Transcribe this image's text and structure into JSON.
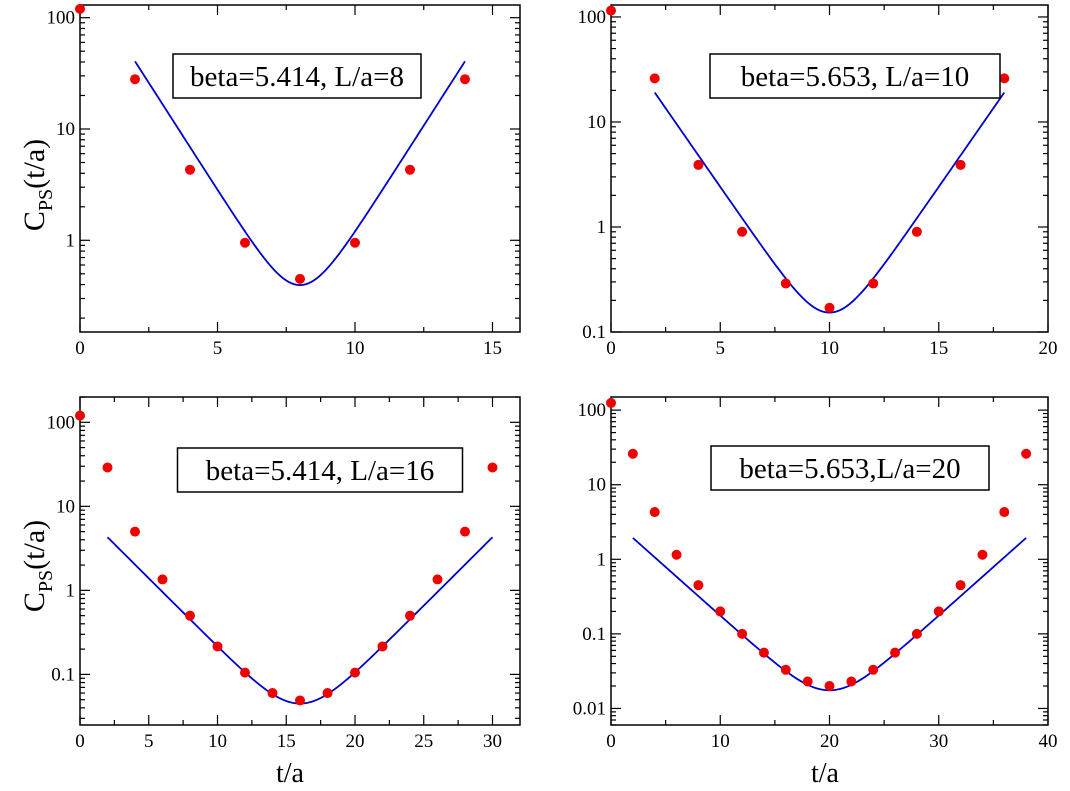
{
  "figure": {
    "ylabel_main": "C",
    "ylabel_sub": "PS",
    "ylabel_tail": "(t/a)",
    "xlabel": "t/a"
  },
  "colors": {
    "points": "#ee0000",
    "fit": "#0000cc",
    "axes": "#000000",
    "background": "#ffffff"
  },
  "chart_data": [
    {
      "type": "scatter",
      "title": "beta=5.414, L/a=8",
      "xlabel": "",
      "ylabel": "C_PS(t/a)",
      "xlim": [
        0,
        16
      ],
      "ylim": [
        0.15,
        130
      ],
      "yscale": "log",
      "xticks": [
        0,
        5,
        10,
        15
      ],
      "yticks": [
        1,
        10,
        100
      ],
      "ytick_labels": [
        "1",
        "10",
        "100"
      ],
      "legend_position": "top-center",
      "series": [
        {
          "kind": "points",
          "x": [
            0,
            2,
            4,
            6,
            8,
            10,
            12,
            14
          ],
          "y": [
            120,
            28,
            4.3,
            0.95,
            0.45,
            0.95,
            4.3,
            28
          ]
        },
        {
          "kind": "fit-line",
          "x_range": [
            2,
            14
          ],
          "amplitude": 0.198,
          "mass": 0.887,
          "period": 16
        }
      ]
    },
    {
      "type": "scatter",
      "title": "beta=5.653, L/a=10",
      "xlabel": "",
      "ylabel": "",
      "xlim": [
        0,
        20
      ],
      "ylim": [
        0.1,
        130
      ],
      "yscale": "log",
      "xticks": [
        0,
        5,
        10,
        15,
        20
      ],
      "yticks": [
        0.1,
        1,
        10,
        100
      ],
      "ytick_labels": [
        "0.1",
        "1",
        "10",
        "100"
      ],
      "legend_position": "top-center",
      "series": [
        {
          "kind": "points",
          "x": [
            0,
            2,
            4,
            6,
            8,
            10,
            12,
            14,
            16,
            18
          ],
          "y": [
            115,
            26,
            3.9,
            0.9,
            0.29,
            0.17,
            0.29,
            0.9,
            3.9,
            26
          ]
        },
        {
          "kind": "fit-line",
          "x_range": [
            2,
            18
          ],
          "amplitude": 0.0765,
          "mass": 0.69,
          "period": 20
        }
      ]
    },
    {
      "type": "scatter",
      "title": "beta=5.414, L/a=16",
      "xlabel": "t/a",
      "ylabel": "C_PS(t/a)",
      "xlim": [
        0,
        32
      ],
      "ylim": [
        0.025,
        200
      ],
      "yscale": "log",
      "xticks": [
        0,
        5,
        10,
        15,
        20,
        25,
        30
      ],
      "yticks": [
        0.1,
        1,
        10,
        100
      ],
      "ytick_labels": [
        "0.1",
        "1",
        "10",
        "100"
      ],
      "legend_position": "top-right",
      "series": [
        {
          "kind": "points",
          "x": [
            0,
            2,
            4,
            6,
            8,
            10,
            12,
            14,
            16,
            18,
            20,
            22,
            24,
            26,
            28,
            30
          ],
          "y": [
            120,
            29,
            5,
            1.35,
            0.5,
            0.215,
            0.105,
            0.06,
            0.049,
            0.06,
            0.105,
            0.215,
            0.5,
            1.35,
            5,
            29
          ]
        },
        {
          "kind": "fit-line",
          "x_range": [
            2,
            30
          ],
          "amplitude": 0.0225,
          "mass": 0.375,
          "period": 32
        }
      ]
    },
    {
      "type": "scatter",
      "title": "beta=5.653,L/a=20",
      "xlabel": "t/a",
      "ylabel": "",
      "xlim": [
        0,
        40
      ],
      "ylim": [
        0.006,
        150
      ],
      "yscale": "log",
      "xticks": [
        0,
        10,
        20,
        30,
        40
      ],
      "yticks": [
        0.01,
        0.1,
        1,
        10,
        100
      ],
      "ytick_labels": [
        "0.01",
        "0.1",
        "1",
        "10",
        "100"
      ],
      "legend_position": "top-center",
      "series": [
        {
          "kind": "points",
          "x": [
            0,
            2,
            4,
            6,
            8,
            10,
            12,
            14,
            16,
            18,
            20,
            22,
            24,
            26,
            28,
            30,
            32,
            34,
            36,
            38
          ],
          "y": [
            125,
            26,
            4.3,
            1.15,
            0.45,
            0.2,
            0.1,
            0.056,
            0.033,
            0.023,
            0.02,
            0.023,
            0.033,
            0.056,
            0.1,
            0.2,
            0.45,
            1.15,
            4.3,
            26
          ]
        },
        {
          "kind": "fit-line",
          "x_range": [
            2,
            38
          ],
          "amplitude": 0.00875,
          "mass": 0.3,
          "period": 40
        }
      ]
    }
  ]
}
